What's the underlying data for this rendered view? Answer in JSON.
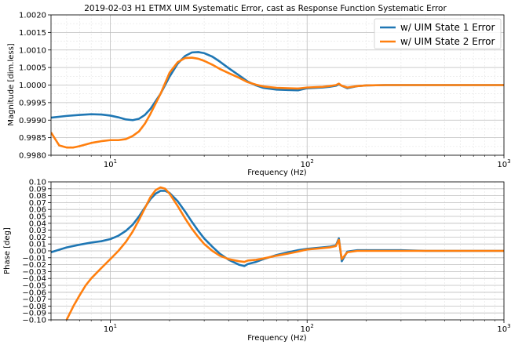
{
  "chart_data": [
    {
      "type": "line",
      "title": "2019-02-03 H1 ETMX UIM Systematic Error, cast as Response Function Systematic Error",
      "xlabel": "Frequency (Hz)",
      "ylabel": "Magnitude [dim.less]",
      "xscale": "log",
      "xlim": [
        5,
        1000
      ],
      "ylim": [
        0.998,
        1.002
      ],
      "grid": true,
      "legend_position": "top-right",
      "xticks": [
        {
          "base": "10",
          "exp": "1",
          "value": 10
        },
        {
          "base": "10",
          "exp": "2",
          "value": 100
        },
        {
          "base": "10",
          "exp": "3",
          "value": 1000
        }
      ],
      "yticks": [
        {
          "label": "0.9980",
          "value": 0.998
        },
        {
          "label": "0.9985",
          "value": 0.9985
        },
        {
          "label": "0.9990",
          "value": 0.999
        },
        {
          "label": "0.9995",
          "value": 0.9995
        },
        {
          "label": "1.0000",
          "value": 1.0
        },
        {
          "label": "1.0005",
          "value": 1.0005
        },
        {
          "label": "1.0010",
          "value": 1.001
        },
        {
          "label": "1.0015",
          "value": 1.0015
        },
        {
          "label": "1.0020",
          "value": 1.002
        }
      ],
      "series": [
        {
          "name": "w/ UIM State 1 Error",
          "color": "#1f77b4",
          "x": [
            5,
            6,
            7,
            8,
            9,
            10,
            11,
            12,
            13,
            14,
            15,
            16,
            18,
            20,
            22,
            24,
            26,
            28,
            30,
            33,
            36,
            40,
            45,
            50,
            55,
            60,
            70,
            80,
            90,
            100,
            110,
            120,
            130,
            140,
            145,
            150,
            160,
            180,
            200,
            250,
            300,
            400,
            500,
            700,
            1000
          ],
          "y": [
            0.99907,
            0.99912,
            0.99915,
            0.99917,
            0.99916,
            0.99913,
            0.99908,
            0.99902,
            0.999,
            0.99904,
            0.99915,
            0.99932,
            0.99975,
            1.00024,
            1.00061,
            1.00083,
            1.00093,
            1.00094,
            1.00091,
            1.00081,
            1.00067,
            1.00048,
            1.00028,
            1.0001,
            0.99999,
            0.99992,
            0.99987,
            0.99986,
            0.99985,
            0.99991,
            0.99992,
            0.99993,
            0.99995,
            0.99998,
            1.00002,
            0.99998,
            0.99991,
            0.99997,
            0.99999,
            1.0,
            1.0,
            1.0,
            1.0,
            1.0,
            1.0
          ]
        },
        {
          "name": "w/ UIM State 2 Error",
          "color": "#ff7f0e",
          "x": [
            5,
            5.5,
            6,
            6.5,
            7,
            8,
            9,
            10,
            11,
            12,
            13,
            14,
            15,
            16,
            18,
            20,
            22,
            24,
            26,
            28,
            30,
            33,
            36,
            40,
            45,
            50,
            55,
            60,
            70,
            80,
            90,
            100,
            110,
            120,
            130,
            140,
            145,
            150,
            160,
            180,
            200,
            250,
            300,
            400,
            500,
            700,
            1000
          ],
          "y": [
            0.99865,
            0.99828,
            0.99822,
            0.99822,
            0.99826,
            0.99835,
            0.9984,
            0.99843,
            0.99843,
            0.99846,
            0.99855,
            0.99868,
            0.9989,
            0.99918,
            0.99975,
            1.00035,
            1.00065,
            1.00077,
            1.00078,
            1.00075,
            1.00069,
            1.00058,
            1.00046,
            1.00034,
            1.00021,
            1.00008,
            1.00001,
            0.99996,
            0.99992,
            0.99991,
            0.9999,
            0.99993,
            0.99994,
            0.99995,
            0.99997,
            1.0,
            1.00004,
            0.99998,
            0.99993,
            0.99997,
            0.99999,
            1.0,
            1.0,
            1.0,
            1.0,
            1.0,
            1.0
          ]
        }
      ]
    },
    {
      "type": "line",
      "title": "",
      "xlabel": "Frequency (Hz)",
      "ylabel": "Phase [deg]",
      "xscale": "log",
      "xlim": [
        5,
        1000
      ],
      "ylim": [
        -0.1,
        0.1
      ],
      "grid": true,
      "xticks": [
        {
          "base": "10",
          "exp": "1",
          "value": 10
        },
        {
          "base": "10",
          "exp": "2",
          "value": 100
        },
        {
          "base": "10",
          "exp": "3",
          "value": 1000
        }
      ],
      "yticks": [
        {
          "label": "−0.10",
          "value": -0.1
        },
        {
          "label": "−0.09",
          "value": -0.09
        },
        {
          "label": "−0.08",
          "value": -0.08
        },
        {
          "label": "−0.07",
          "value": -0.07
        },
        {
          "label": "−0.06",
          "value": -0.06
        },
        {
          "label": "−0.05",
          "value": -0.05
        },
        {
          "label": "−0.04",
          "value": -0.04
        },
        {
          "label": "−0.03",
          "value": -0.03
        },
        {
          "label": "−0.02",
          "value": -0.02
        },
        {
          "label": "−0.01",
          "value": -0.01
        },
        {
          "label": "0.00",
          "value": 0.0
        },
        {
          "label": "0.01",
          "value": 0.01
        },
        {
          "label": "0.02",
          "value": 0.02
        },
        {
          "label": "0.03",
          "value": 0.03
        },
        {
          "label": "0.04",
          "value": 0.04
        },
        {
          "label": "0.05",
          "value": 0.05
        },
        {
          "label": "0.06",
          "value": 0.06
        },
        {
          "label": "0.07",
          "value": 0.07
        },
        {
          "label": "0.08",
          "value": 0.08
        },
        {
          "label": "0.09",
          "value": 0.09
        },
        {
          "label": "0.10",
          "value": 0.1
        }
      ],
      "series": [
        {
          "name": "w/ UIM State 1 Error",
          "color": "#1f77b4",
          "x": [
            5,
            6,
            7,
            8,
            9,
            10,
            11,
            12,
            13,
            14,
            15,
            16,
            17,
            18,
            19,
            20,
            22,
            24,
            26,
            28,
            30,
            33,
            36,
            40,
            45,
            48,
            50,
            55,
            60,
            70,
            80,
            90,
            100,
            110,
            120,
            130,
            140,
            145,
            150,
            160,
            180,
            200,
            250,
            300,
            400,
            500,
            700,
            1000
          ],
          "y": [
            -0.002,
            0.005,
            0.009,
            0.012,
            0.014,
            0.017,
            0.022,
            0.029,
            0.038,
            0.05,
            0.063,
            0.075,
            0.083,
            0.087,
            0.087,
            0.084,
            0.072,
            0.057,
            0.042,
            0.029,
            0.018,
            0.006,
            -0.004,
            -0.013,
            -0.02,
            -0.022,
            -0.019,
            -0.016,
            -0.012,
            -0.006,
            -0.002,
            0.001,
            0.003,
            0.004,
            0.005,
            0.006,
            0.008,
            0.018,
            -0.015,
            -0.001,
            0.001,
            0.001,
            0.001,
            0.001,
            0.0,
            0.0,
            0.0,
            0.0
          ]
        },
        {
          "name": "w/ UIM State 2 Error",
          "color": "#ff7f0e",
          "x": [
            6,
            6.5,
            7,
            7.5,
            8,
            9,
            10,
            11,
            12,
            13,
            14,
            15,
            16,
            17,
            18,
            19,
            20,
            22,
            24,
            26,
            28,
            30,
            33,
            36,
            40,
            45,
            48,
            50,
            55,
            60,
            70,
            80,
            90,
            100,
            110,
            120,
            130,
            140,
            145,
            150,
            160,
            180,
            200,
            250,
            300,
            400,
            500,
            700,
            1000
          ],
          "y": [
            -0.1,
            -0.08,
            -0.064,
            -0.05,
            -0.04,
            -0.025,
            -0.012,
            0.0,
            0.013,
            0.028,
            0.045,
            0.062,
            0.078,
            0.088,
            0.092,
            0.09,
            0.083,
            0.065,
            0.047,
            0.032,
            0.02,
            0.01,
            0.0,
            -0.007,
            -0.012,
            -0.015,
            -0.016,
            -0.014,
            -0.013,
            -0.011,
            -0.007,
            -0.004,
            -0.001,
            0.002,
            0.003,
            0.004,
            0.005,
            0.007,
            0.016,
            -0.012,
            -0.002,
            0.0,
            0.0,
            0.0,
            0.0,
            0.0,
            0.0,
            0.0,
            0.0
          ]
        }
      ]
    }
  ]
}
